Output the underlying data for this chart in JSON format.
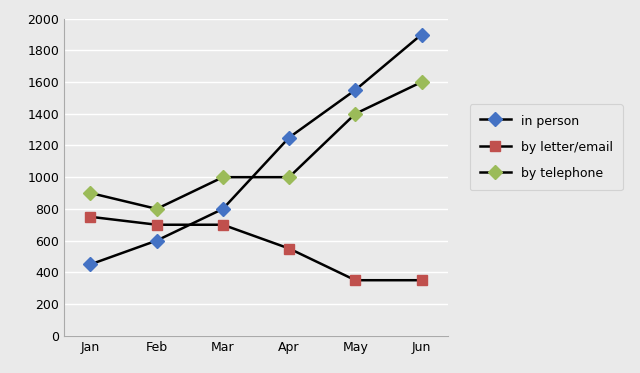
{
  "months": [
    "Jan",
    "Feb",
    "Mar",
    "Apr",
    "May",
    "Jun"
  ],
  "in_person": [
    450,
    600,
    800,
    1250,
    1550,
    1900
  ],
  "by_letter_email": [
    750,
    700,
    700,
    550,
    350,
    350
  ],
  "by_telephone": [
    900,
    800,
    1000,
    1000,
    1400,
    1600
  ],
  "line_color": "#000000",
  "marker_color_person": "#4472C4",
  "marker_color_letter": "#C0504D",
  "marker_color_telephone": "#9BBB59",
  "marker_person": "D",
  "marker_letter": "s",
  "marker_telephone": "D",
  "legend_labels": [
    "in person",
    "by letter/email",
    "by telephone"
  ],
  "ylim": [
    0,
    2000
  ],
  "yticks": [
    0,
    200,
    400,
    600,
    800,
    1000,
    1200,
    1400,
    1600,
    1800,
    2000
  ],
  "background_color": "#EAEAEA",
  "plot_bg_color": "#EAEAEA",
  "grid_color": "#FFFFFF",
  "linewidth": 1.8,
  "markersize": 7,
  "figsize": [
    6.4,
    3.73
  ],
  "dpi": 100
}
